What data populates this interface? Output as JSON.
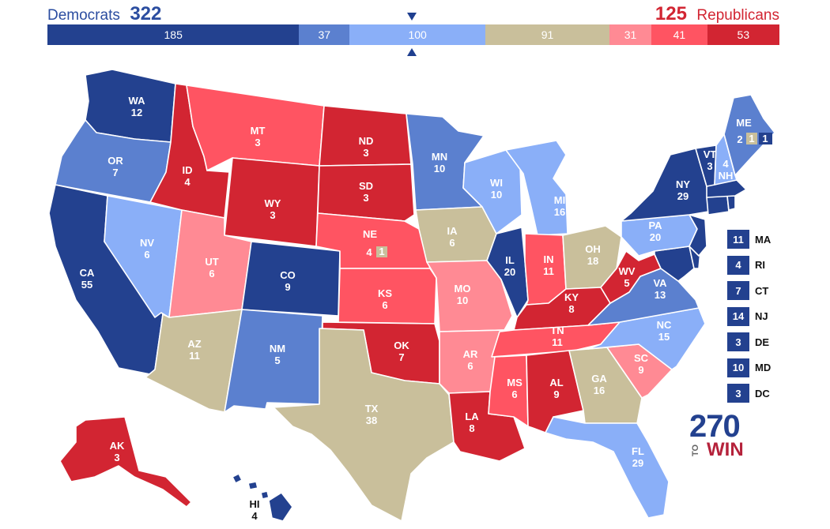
{
  "header": {
    "dem_label": "Democrats",
    "dem_total": "322",
    "rep_total": "125",
    "rep_label": "Republicans"
  },
  "colors": {
    "safe_dem": "#23418f",
    "likely_dem": "#5b80cf",
    "lean_dem": "#8aaff8",
    "tossup": "#c9bf9b",
    "lean_rep": "#ff8a94",
    "likely_rep": "#ff5462",
    "safe_rep": "#d22532"
  },
  "segments": [
    {
      "value": "185",
      "color": "#23418f"
    },
    {
      "value": "37",
      "color": "#5b80cf"
    },
    {
      "value": "100",
      "color": "#8aaff8"
    },
    {
      "value": "91",
      "color": "#c9bf9b"
    },
    {
      "value": "31",
      "color": "#ff8a94"
    },
    {
      "value": "41",
      "color": "#ff5462"
    },
    {
      "value": "53",
      "color": "#d22532"
    }
  ],
  "states": {
    "WA": {
      "abbr": "WA",
      "ev": "12"
    },
    "OR": {
      "abbr": "OR",
      "ev": "7"
    },
    "CA": {
      "abbr": "CA",
      "ev": "55"
    },
    "NV": {
      "abbr": "NV",
      "ev": "6"
    },
    "ID": {
      "abbr": "ID",
      "ev": "4"
    },
    "MT": {
      "abbr": "MT",
      "ev": "3"
    },
    "WY": {
      "abbr": "WY",
      "ev": "3"
    },
    "UT": {
      "abbr": "UT",
      "ev": "6"
    },
    "AZ": {
      "abbr": "AZ",
      "ev": "11"
    },
    "CO": {
      "abbr": "CO",
      "ev": "9"
    },
    "NM": {
      "abbr": "NM",
      "ev": "5"
    },
    "ND": {
      "abbr": "ND",
      "ev": "3"
    },
    "SD": {
      "abbr": "SD",
      "ev": "3"
    },
    "NE": {
      "abbr": "NE",
      "ev": "4",
      "split": "1"
    },
    "KS": {
      "abbr": "KS",
      "ev": "6"
    },
    "OK": {
      "abbr": "OK",
      "ev": "7"
    },
    "TX": {
      "abbr": "TX",
      "ev": "38"
    },
    "MN": {
      "abbr": "MN",
      "ev": "10"
    },
    "IA": {
      "abbr": "IA",
      "ev": "6"
    },
    "MO": {
      "abbr": "MO",
      "ev": "10"
    },
    "AR": {
      "abbr": "AR",
      "ev": "6"
    },
    "LA": {
      "abbr": "LA",
      "ev": "8"
    },
    "WI": {
      "abbr": "WI",
      "ev": "10"
    },
    "IL": {
      "abbr": "IL",
      "ev": "20"
    },
    "MI": {
      "abbr": "MI",
      "ev": "16"
    },
    "IN": {
      "abbr": "IN",
      "ev": "11"
    },
    "OH": {
      "abbr": "OH",
      "ev": "18"
    },
    "KY": {
      "abbr": "KY",
      "ev": "8"
    },
    "TN": {
      "abbr": "TN",
      "ev": "11"
    },
    "MS": {
      "abbr": "MS",
      "ev": "6"
    },
    "AL": {
      "abbr": "AL",
      "ev": "9"
    },
    "GA": {
      "abbr": "GA",
      "ev": "16"
    },
    "FL": {
      "abbr": "FL",
      "ev": "29"
    },
    "SC": {
      "abbr": "SC",
      "ev": "9"
    },
    "NC": {
      "abbr": "NC",
      "ev": "15"
    },
    "VA": {
      "abbr": "VA",
      "ev": "13"
    },
    "WV": {
      "abbr": "WV",
      "ev": "5"
    },
    "PA": {
      "abbr": "PA",
      "ev": "20"
    },
    "NY": {
      "abbr": "NY",
      "ev": "29"
    },
    "VT": {
      "abbr": "VT",
      "ev": "3"
    },
    "NH": {
      "abbr": "NH",
      "ev": "4"
    },
    "ME": {
      "abbr": "ME",
      "ev": "2",
      "split_a": "1",
      "split_b": "1"
    },
    "AK": {
      "abbr": "AK",
      "ev": "3"
    },
    "HI": {
      "abbr": "HI",
      "ev": "4"
    }
  },
  "small_states": [
    {
      "ev": "11",
      "abbr": "MA"
    },
    {
      "ev": "4",
      "abbr": "RI"
    },
    {
      "ev": "7",
      "abbr": "CT"
    },
    {
      "ev": "14",
      "abbr": "NJ"
    },
    {
      "ev": "3",
      "abbr": "DE"
    },
    {
      "ev": "10",
      "abbr": "MD"
    },
    {
      "ev": "3",
      "abbr": "DC"
    }
  ],
  "logo": {
    "number": "270",
    "to": "TO",
    "win": "WIN"
  }
}
